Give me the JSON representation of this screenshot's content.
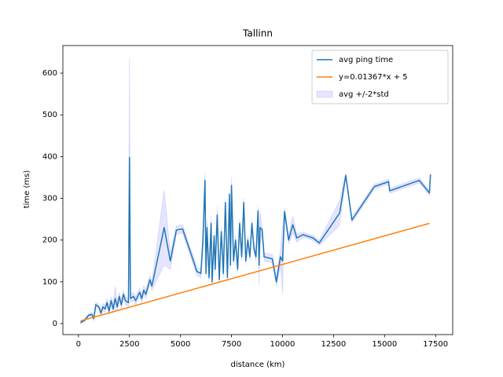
{
  "chart_data": {
    "type": "line",
    "title": "Tallinn",
    "x_label": "distance (km)",
    "y_label": "time (ms)",
    "xlim": [
      -764,
      18340
    ],
    "ylim": [
      -26.4,
      666
    ],
    "xticks": [
      0,
      2500,
      5000,
      7500,
      10000,
      12500,
      15000,
      17500
    ],
    "yticks": [
      0,
      100,
      200,
      300,
      400,
      500,
      600
    ],
    "legend": "upper right",
    "series": [
      {
        "name": "avg ping time",
        "color": "#1f77b4",
        "x": [
          100,
          300,
          500,
          650,
          750,
          850,
          1000,
          1100,
          1200,
          1300,
          1400,
          1500,
          1600,
          1700,
          1800,
          1900,
          2000,
          2100,
          2200,
          2300,
          2450,
          2500,
          2550,
          2700,
          2800,
          3000,
          3100,
          3200,
          3300,
          3500,
          3600,
          4200,
          4500,
          4800,
          5100,
          5600,
          5800,
          6000,
          6100,
          6200,
          6250,
          6300,
          6400,
          6500,
          6550,
          6650,
          6700,
          6800,
          6900,
          7000,
          7100,
          7200,
          7300,
          7400,
          7450,
          7500,
          7600,
          7700,
          7800,
          7900,
          8000,
          8100,
          8200,
          8300,
          8400,
          8500,
          8600,
          8700,
          8800,
          8850,
          8900,
          9000,
          9100,
          9500,
          9700,
          9900,
          10000,
          10100,
          10300,
          10500,
          10700,
          11000,
          11500,
          11800,
          12800,
          13100,
          13400,
          14500,
          15200,
          15250,
          16700,
          17200,
          17250
        ],
        "values": [
          2,
          8,
          20,
          22,
          12,
          45,
          40,
          25,
          40,
          35,
          50,
          30,
          55,
          35,
          60,
          40,
          65,
          45,
          70,
          55,
          50,
          398,
          60,
          65,
          55,
          75,
          60,
          80,
          70,
          105,
          90,
          230,
          150,
          224,
          227,
          155,
          125,
          120,
          200,
          343,
          120,
          230,
          110,
          240,
          100,
          210,
          130,
          260,
          105,
          220,
          120,
          290,
          110,
          310,
          140,
          331,
          150,
          200,
          130,
          240,
          160,
          290,
          150,
          200,
          160,
          240,
          180,
          160,
          270,
          140,
          230,
          225,
          160,
          155,
          100,
          160,
          150,
          268,
          200,
          237,
          205,
          213,
          205,
          193,
          265,
          355,
          248,
          328,
          340,
          318,
          343,
          313,
          357
        ]
      },
      {
        "name": "y=0.01367*x + 5",
        "color": "#ff7f0e",
        "x": [
          100,
          17200
        ],
        "values": [
          6.367,
          240.124
        ]
      }
    ],
    "band": {
      "name": "avg +/-2*std",
      "color": "#0000ff",
      "std": [
        1,
        2,
        2,
        2,
        3,
        3,
        3,
        4,
        4,
        4,
        5,
        5,
        5,
        5,
        15,
        5,
        5,
        5,
        5,
        5,
        5,
        120,
        5,
        5,
        5,
        5,
        5,
        5,
        5,
        5,
        5,
        45,
        10,
        5,
        5,
        5,
        5,
        5,
        10,
        10,
        5,
        10,
        5,
        10,
        5,
        5,
        5,
        10,
        5,
        5,
        5,
        5,
        5,
        5,
        5,
        10,
        5,
        5,
        5,
        5,
        5,
        5,
        5,
        5,
        5,
        5,
        5,
        5,
        5,
        25,
        20,
        5,
        5,
        5,
        5,
        10,
        40,
        5,
        5,
        10,
        5,
        3,
        3,
        3,
        15,
        3,
        3,
        3,
        3,
        3,
        3,
        3,
        3
      ]
    }
  }
}
